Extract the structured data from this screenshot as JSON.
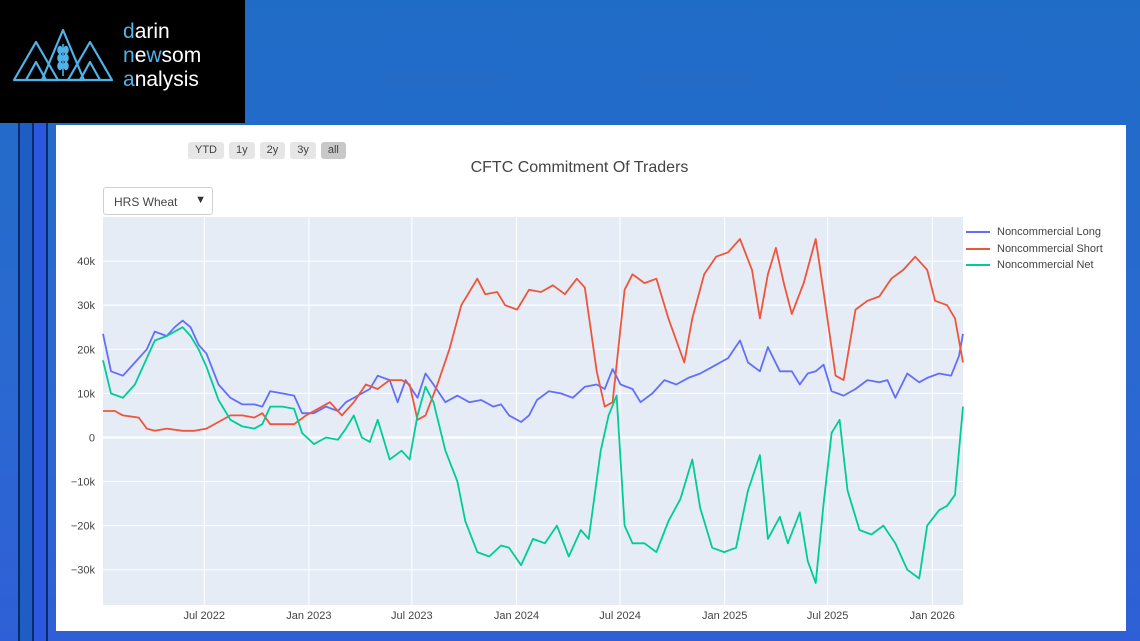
{
  "brand": {
    "line1_first": "d",
    "line1_rest": "arin",
    "line2_first": "n",
    "line2_mid": "e",
    "line2_acc": "w",
    "line2_rest": "som",
    "line3_first": "a",
    "line3_rest": "nalysis",
    "accent_color": "#4fb3e8"
  },
  "range_selector": [
    "YTD",
    "1y",
    "2y",
    "3y",
    "all"
  ],
  "range_active": "all",
  "dropdown": {
    "selected": "HRS Wheat"
  },
  "chart_data": {
    "type": "line",
    "title": "CFTC Commitment Of Traders",
    "xlabel": "",
    "ylabel": "",
    "x_range": [
      "2022-01-04",
      "2026-02-24"
    ],
    "x_ticks": [
      {
        "date": "2022-07-01",
        "label": "Jul 2022"
      },
      {
        "date": "2023-01-01",
        "label": "Jan 2023"
      },
      {
        "date": "2023-07-01",
        "label": "Jul 2023"
      },
      {
        "date": "2024-01-01",
        "label": "Jan 2024"
      },
      {
        "date": "2024-07-01",
        "label": "Jul 2024"
      },
      {
        "date": "2025-01-01",
        "label": "Jan 2025"
      },
      {
        "date": "2025-07-01",
        "label": "Jul 2025"
      },
      {
        "date": "2026-01-01",
        "label": "Jan 2026"
      }
    ],
    "y_range": [
      -38000,
      50000
    ],
    "y_ticks": [
      {
        "value": 40000,
        "label": "40k"
      },
      {
        "value": 30000,
        "label": "30k"
      },
      {
        "value": 20000,
        "label": "20k"
      },
      {
        "value": 10000,
        "label": "10k"
      },
      {
        "value": 0,
        "label": "0"
      },
      {
        "value": -10000,
        "label": "−10k"
      },
      {
        "value": -20000,
        "label": "−20k"
      },
      {
        "value": -30000,
        "label": "−30k"
      }
    ],
    "grid": true,
    "legend_position": "right",
    "series": [
      {
        "name": "Noncommercial Long",
        "color": "#636efa",
        "points": [
          [
            "2022-01-04",
            23500
          ],
          [
            "2022-01-18",
            15000
          ],
          [
            "2022-02-08",
            14000
          ],
          [
            "2022-03-01",
            17000
          ],
          [
            "2022-03-22",
            20000
          ],
          [
            "2022-04-05",
            24000
          ],
          [
            "2022-04-26",
            23000
          ],
          [
            "2022-05-10",
            25000
          ],
          [
            "2022-05-24",
            26500
          ],
          [
            "2022-06-07",
            25000
          ],
          [
            "2022-06-21",
            21000
          ],
          [
            "2022-07-05",
            19000
          ],
          [
            "2022-07-26",
            12000
          ],
          [
            "2022-08-16",
            9000
          ],
          [
            "2022-09-06",
            7500
          ],
          [
            "2022-09-27",
            7500
          ],
          [
            "2022-10-11",
            7000
          ],
          [
            "2022-10-25",
            10500
          ],
          [
            "2022-11-15",
            10000
          ],
          [
            "2022-12-06",
            9500
          ],
          [
            "2022-12-20",
            5500
          ],
          [
            "2023-01-10",
            5500
          ],
          [
            "2023-01-31",
            7000
          ],
          [
            "2023-02-21",
            6000
          ],
          [
            "2023-03-07",
            8000
          ],
          [
            "2023-03-28",
            9500
          ],
          [
            "2023-04-18",
            11000
          ],
          [
            "2023-05-02",
            14000
          ],
          [
            "2023-05-23",
            13000
          ],
          [
            "2023-06-06",
            8000
          ],
          [
            "2023-06-20",
            13000
          ],
          [
            "2023-07-11",
            9000
          ],
          [
            "2023-07-25",
            14500
          ],
          [
            "2023-08-08",
            12000
          ],
          [
            "2023-08-29",
            8000
          ],
          [
            "2023-09-19",
            9500
          ],
          [
            "2023-10-10",
            8000
          ],
          [
            "2023-10-31",
            8500
          ],
          [
            "2023-11-21",
            7000
          ],
          [
            "2023-12-05",
            7500
          ],
          [
            "2023-12-19",
            5000
          ],
          [
            "2024-01-09",
            3500
          ],
          [
            "2024-01-23",
            5000
          ],
          [
            "2024-02-06",
            8500
          ],
          [
            "2024-02-27",
            10500
          ],
          [
            "2024-03-19",
            10000
          ],
          [
            "2024-04-09",
            9000
          ],
          [
            "2024-04-30",
            11500
          ],
          [
            "2024-05-21",
            12000
          ],
          [
            "2024-06-04",
            11000
          ],
          [
            "2024-06-18",
            15500
          ],
          [
            "2024-07-02",
            12000
          ],
          [
            "2024-07-23",
            11000
          ],
          [
            "2024-08-06",
            8000
          ],
          [
            "2024-08-27",
            10000
          ],
          [
            "2024-09-17",
            13000
          ],
          [
            "2024-10-08",
            12000
          ],
          [
            "2024-10-29",
            13500
          ],
          [
            "2024-11-19",
            14500
          ],
          [
            "2024-12-10",
            16000
          ],
          [
            "2025-01-07",
            18000
          ],
          [
            "2025-01-28",
            22000
          ],
          [
            "2025-02-11",
            17000
          ],
          [
            "2025-03-04",
            15000
          ],
          [
            "2025-03-18",
            20500
          ],
          [
            "2025-04-08",
            15000
          ],
          [
            "2025-04-29",
            15000
          ],
          [
            "2025-05-13",
            12000
          ],
          [
            "2025-05-27",
            14500
          ],
          [
            "2025-06-10",
            15000
          ],
          [
            "2025-06-24",
            16500
          ],
          [
            "2025-07-08",
            10500
          ],
          [
            "2025-07-29",
            9500
          ],
          [
            "2025-08-19",
            11000
          ],
          [
            "2025-09-09",
            13000
          ],
          [
            "2025-09-30",
            12500
          ],
          [
            "2025-10-14",
            13000
          ],
          [
            "2025-10-28",
            9000
          ],
          [
            "2025-11-18",
            14500
          ],
          [
            "2025-12-09",
            12500
          ],
          [
            "2025-12-23",
            13500
          ],
          [
            "2026-01-13",
            14500
          ],
          [
            "2026-02-03",
            14000
          ],
          [
            "2026-02-17",
            18500
          ],
          [
            "2026-02-24",
            23500
          ]
        ]
      },
      {
        "name": "Noncommercial Short",
        "color": "#ef553b",
        "points": [
          [
            "2022-01-04",
            6000
          ],
          [
            "2022-01-25",
            6000
          ],
          [
            "2022-02-08",
            5000
          ],
          [
            "2022-03-08",
            4500
          ],
          [
            "2022-03-22",
            2000
          ],
          [
            "2022-04-05",
            1500
          ],
          [
            "2022-04-26",
            2000
          ],
          [
            "2022-05-24",
            1500
          ],
          [
            "2022-06-14",
            1500
          ],
          [
            "2022-07-05",
            2000
          ],
          [
            "2022-07-26",
            3500
          ],
          [
            "2022-08-16",
            5000
          ],
          [
            "2022-09-06",
            5000
          ],
          [
            "2022-09-27",
            4500
          ],
          [
            "2022-10-11",
            5500
          ],
          [
            "2022-10-25",
            3000
          ],
          [
            "2022-11-15",
            3000
          ],
          [
            "2022-12-06",
            3000
          ],
          [
            "2022-12-27",
            5000
          ],
          [
            "2023-01-17",
            6500
          ],
          [
            "2023-02-07",
            8000
          ],
          [
            "2023-02-28",
            5000
          ],
          [
            "2023-03-21",
            8000
          ],
          [
            "2023-04-11",
            12000
          ],
          [
            "2023-05-02",
            11000
          ],
          [
            "2023-05-23",
            13000
          ],
          [
            "2023-06-13",
            13000
          ],
          [
            "2023-06-27",
            12000
          ],
          [
            "2023-07-11",
            4000
          ],
          [
            "2023-07-25",
            5000
          ],
          [
            "2023-08-15",
            12000
          ],
          [
            "2023-09-05",
            20000
          ],
          [
            "2023-09-26",
            30000
          ],
          [
            "2023-10-10",
            33000
          ],
          [
            "2023-10-24",
            36000
          ],
          [
            "2023-11-07",
            32500
          ],
          [
            "2023-11-28",
            33000
          ],
          [
            "2023-12-12",
            30000
          ],
          [
            "2024-01-02",
            29000
          ],
          [
            "2024-01-23",
            33500
          ],
          [
            "2024-02-13",
            33000
          ],
          [
            "2024-03-05",
            34500
          ],
          [
            "2024-03-26",
            32500
          ],
          [
            "2024-04-16",
            36000
          ],
          [
            "2024-04-30",
            34000
          ],
          [
            "2024-05-21",
            15000
          ],
          [
            "2024-06-04",
            7000
          ],
          [
            "2024-06-18",
            8000
          ],
          [
            "2024-07-09",
            33500
          ],
          [
            "2024-07-23",
            37000
          ],
          [
            "2024-08-13",
            35000
          ],
          [
            "2024-09-03",
            36000
          ],
          [
            "2024-09-24",
            27000
          ],
          [
            "2024-10-08",
            22000
          ],
          [
            "2024-10-22",
            17000
          ],
          [
            "2024-11-05",
            27000
          ],
          [
            "2024-11-26",
            37000
          ],
          [
            "2024-12-17",
            41000
          ],
          [
            "2025-01-07",
            42000
          ],
          [
            "2025-01-28",
            45000
          ],
          [
            "2025-02-18",
            38000
          ],
          [
            "2025-03-04",
            27000
          ],
          [
            "2025-03-18",
            37000
          ],
          [
            "2025-04-01",
            43000
          ],
          [
            "2025-04-15",
            35000
          ],
          [
            "2025-04-29",
            28000
          ],
          [
            "2025-05-20",
            35000
          ],
          [
            "2025-06-10",
            45000
          ],
          [
            "2025-06-24",
            33000
          ],
          [
            "2025-07-15",
            14000
          ],
          [
            "2025-07-29",
            13000
          ],
          [
            "2025-08-19",
            29000
          ],
          [
            "2025-09-09",
            31000
          ],
          [
            "2025-09-30",
            32000
          ],
          [
            "2025-10-21",
            36000
          ],
          [
            "2025-11-11",
            38000
          ],
          [
            "2025-12-02",
            41000
          ],
          [
            "2025-12-23",
            38000
          ],
          [
            "2026-01-06",
            31000
          ],
          [
            "2026-01-27",
            30000
          ],
          [
            "2026-02-10",
            27000
          ],
          [
            "2026-02-24",
            17000
          ]
        ]
      },
      {
        "name": "Noncommercial Net",
        "color": "#00cc96",
        "points": [
          [
            "2022-01-04",
            17500
          ],
          [
            "2022-01-18",
            10000
          ],
          [
            "2022-02-08",
            9000
          ],
          [
            "2022-03-01",
            12000
          ],
          [
            "2022-03-22",
            18000
          ],
          [
            "2022-04-05",
            22000
          ],
          [
            "2022-04-26",
            23000
          ],
          [
            "2022-05-10",
            24000
          ],
          [
            "2022-05-24",
            25000
          ],
          [
            "2022-06-07",
            23000
          ],
          [
            "2022-06-21",
            20000
          ],
          [
            "2022-07-05",
            16000
          ],
          [
            "2022-07-26",
            8500
          ],
          [
            "2022-08-16",
            4000
          ],
          [
            "2022-09-06",
            2500
          ],
          [
            "2022-09-27",
            2000
          ],
          [
            "2022-10-11",
            3000
          ],
          [
            "2022-10-25",
            7000
          ],
          [
            "2022-11-15",
            7000
          ],
          [
            "2022-12-06",
            6500
          ],
          [
            "2022-12-20",
            1000
          ],
          [
            "2023-01-10",
            -1500
          ],
          [
            "2023-01-31",
            0
          ],
          [
            "2023-02-21",
            -500
          ],
          [
            "2023-03-07",
            2000
          ],
          [
            "2023-03-21",
            5000
          ],
          [
            "2023-04-04",
            0
          ],
          [
            "2023-04-18",
            -1000
          ],
          [
            "2023-05-02",
            4000
          ],
          [
            "2023-05-23",
            -5000
          ],
          [
            "2023-06-13",
            -3000
          ],
          [
            "2023-06-27",
            -5000
          ],
          [
            "2023-07-11",
            5000
          ],
          [
            "2023-07-25",
            11500
          ],
          [
            "2023-08-08",
            8000
          ],
          [
            "2023-08-29",
            -3000
          ],
          [
            "2023-09-19",
            -10000
          ],
          [
            "2023-10-03",
            -19000
          ],
          [
            "2023-10-24",
            -26000
          ],
          [
            "2023-11-14",
            -27000
          ],
          [
            "2023-12-05",
            -24500
          ],
          [
            "2023-12-19",
            -25000
          ],
          [
            "2024-01-09",
            -29000
          ],
          [
            "2024-01-30",
            -23000
          ],
          [
            "2024-02-20",
            -24000
          ],
          [
            "2024-03-12",
            -20000
          ],
          [
            "2024-04-02",
            -27000
          ],
          [
            "2024-04-23",
            -21000
          ],
          [
            "2024-05-07",
            -23000
          ],
          [
            "2024-05-28",
            -3000
          ],
          [
            "2024-06-11",
            5000
          ],
          [
            "2024-06-25",
            9500
          ],
          [
            "2024-07-09",
            -20000
          ],
          [
            "2024-07-23",
            -24000
          ],
          [
            "2024-08-13",
            -24000
          ],
          [
            "2024-09-03",
            -26000
          ],
          [
            "2024-09-24",
            -19000
          ],
          [
            "2024-10-15",
            -14000
          ],
          [
            "2024-11-05",
            -5000
          ],
          [
            "2024-11-19",
            -16000
          ],
          [
            "2024-12-10",
            -25000
          ],
          [
            "2024-12-31",
            -26000
          ],
          [
            "2025-01-21",
            -25000
          ],
          [
            "2025-02-11",
            -12000
          ],
          [
            "2025-03-04",
            -4000
          ],
          [
            "2025-03-18",
            -23000
          ],
          [
            "2025-04-08",
            -18000
          ],
          [
            "2025-04-22",
            -24000
          ],
          [
            "2025-05-13",
            -17000
          ],
          [
            "2025-05-27",
            -28000
          ],
          [
            "2025-06-10",
            -33000
          ],
          [
            "2025-06-24",
            -15000
          ],
          [
            "2025-07-08",
            1000
          ],
          [
            "2025-07-22",
            4000
          ],
          [
            "2025-08-05",
            -12000
          ],
          [
            "2025-08-26",
            -21000
          ],
          [
            "2025-09-16",
            -22000
          ],
          [
            "2025-10-07",
            -20000
          ],
          [
            "2025-10-28",
            -24000
          ],
          [
            "2025-11-18",
            -30000
          ],
          [
            "2025-12-09",
            -32000
          ],
          [
            "2025-12-23",
            -20000
          ],
          [
            "2026-01-13",
            -16500
          ],
          [
            "2026-01-27",
            -15500
          ],
          [
            "2026-02-10",
            -13000
          ],
          [
            "2026-02-24",
            7000
          ]
        ]
      }
    ]
  }
}
